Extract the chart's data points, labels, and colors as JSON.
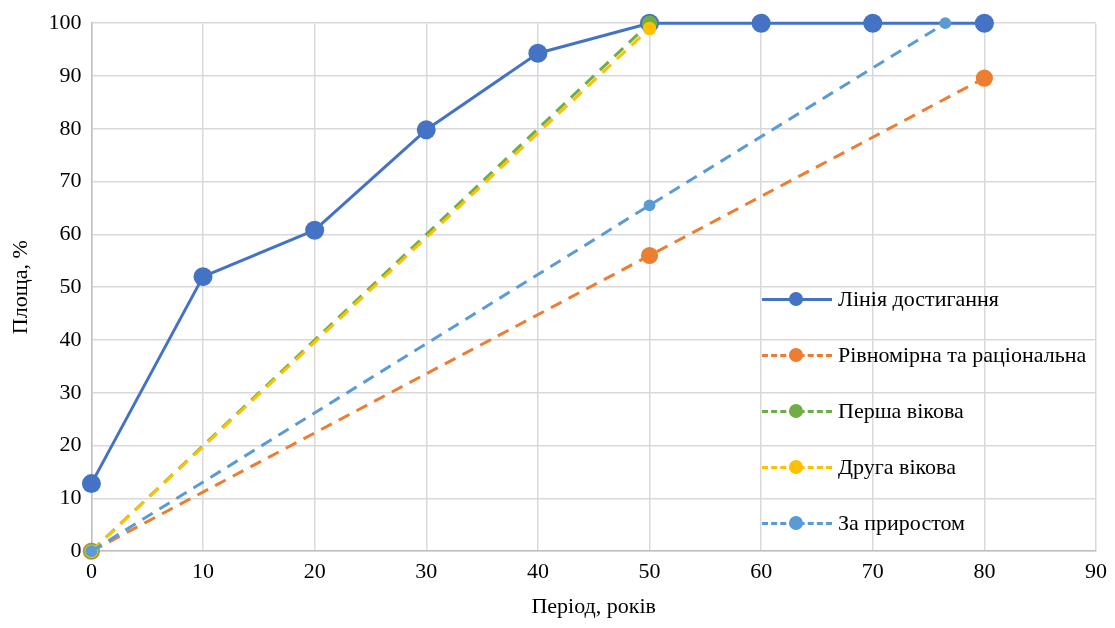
{
  "chart_data": {
    "type": "line",
    "xlabel": "Період, років",
    "ylabel": "Площа, %",
    "xlim": [
      0,
      90
    ],
    "xticks": [
      0,
      10,
      20,
      30,
      40,
      50,
      60,
      70,
      80,
      90
    ],
    "ylim": [
      0,
      100
    ],
    "yticks": [
      0,
      10,
      20,
      30,
      40,
      50,
      60,
      70,
      80,
      90,
      100
    ],
    "grid": true,
    "legend": "bottom right",
    "marker": "circle",
    "series": [
      {
        "name": "Лінія достигання",
        "color": "#4472c4",
        "line_style": "solid",
        "x": [
          0,
          10,
          20,
          30,
          40,
          50,
          60,
          70,
          80
        ],
        "values": [
          12.8,
          52,
          60.8,
          79.8,
          94.3,
          100,
          100,
          100,
          100
        ]
      },
      {
        "name": "Рівномірна та раціональна",
        "color": "#ed7d31",
        "line_style": "dashed",
        "x": [
          0,
          50,
          80
        ],
        "values": [
          0,
          56,
          89.6
        ]
      },
      {
        "name": "Перша вікова",
        "color": "#70ad47",
        "line_style": "dashed",
        "x": [
          0,
          50
        ],
        "values": [
          0,
          100
        ]
      },
      {
        "name": "Друга вікова",
        "color": "#ffc000",
        "line_style": "dashed",
        "x": [
          0,
          50
        ],
        "values": [
          0,
          99
        ]
      },
      {
        "name": "За приростом",
        "color": "#5b9bd5",
        "line_style": "dashed",
        "x": [
          0,
          50,
          76.5
        ],
        "values": [
          0,
          65.5,
          100
        ]
      }
    ]
  }
}
